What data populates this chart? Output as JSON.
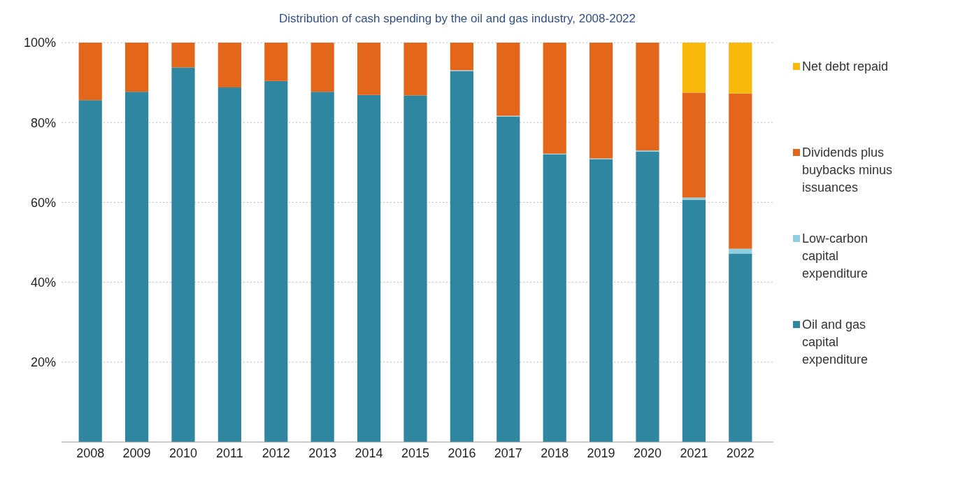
{
  "chart_data": {
    "type": "bar",
    "title": "Distribution of cash spending by the oil and gas industry, 2008-2022",
    "stacked": true,
    "categories": [
      "2008",
      "2009",
      "2010",
      "2011",
      "2012",
      "2013",
      "2014",
      "2015",
      "2016",
      "2017",
      "2018",
      "2019",
      "2020",
      "2021",
      "2022"
    ],
    "series": [
      {
        "name": "Oil and gas capital expenditure",
        "color": "#2e86a0",
        "values": [
          85.6,
          87.7,
          93.8,
          88.8,
          90.4,
          87.7,
          86.9,
          86.8,
          92.9,
          81.5,
          72.0,
          70.8,
          72.7,
          60.6,
          47.2
        ]
      },
      {
        "name": "Low-carbon capital expenditure",
        "color": "#8ecfe0",
        "values": [
          0,
          0,
          0,
          0,
          0,
          0,
          0,
          0,
          0.2,
          0.2,
          0.2,
          0.2,
          0.3,
          0.6,
          1.2
        ]
      },
      {
        "name": "Dividends plus buybacks minus issuances",
        "color": "#e3661b",
        "values": [
          14.4,
          12.3,
          6.2,
          11.2,
          9.6,
          12.3,
          13.1,
          13.2,
          6.9,
          18.3,
          27.8,
          29.0,
          27.0,
          26.3,
          38.9
        ]
      },
      {
        "name": "Net debt repaid",
        "color": "#f8b90b",
        "values": [
          0,
          0,
          0,
          0,
          0,
          0,
          0,
          0,
          0,
          0,
          0,
          0,
          0,
          12.5,
          12.7
        ]
      }
    ],
    "ylim": [
      0,
      100
    ],
    "yticks": [
      {
        "value": 20,
        "label": "20%"
      },
      {
        "value": 40,
        "label": "40%"
      },
      {
        "value": 60,
        "label": "60%"
      },
      {
        "value": 80,
        "label": "80%"
      },
      {
        "value": 100,
        "label": "100%"
      }
    ],
    "grid": "y",
    "legend": "right"
  }
}
